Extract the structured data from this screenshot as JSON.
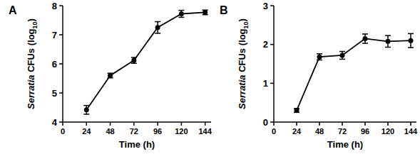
{
  "chart_data": [
    {
      "type": "line",
      "title": "A",
      "x_label": "Time (h)",
      "y_label": "Serratia CFUs (log10)",
      "x": [
        24,
        48,
        72,
        96,
        120,
        144
      ],
      "series": [
        {
          "name": "Serratia",
          "color": "#000000",
          "marker": "circle",
          "line_style": "solid",
          "values": [
            4.42,
            5.6,
            6.12,
            7.25,
            7.72,
            7.77
          ],
          "errors": [
            0.15,
            0.08,
            0.1,
            0.2,
            0.12,
            0.08
          ]
        }
      ],
      "xlim": [
        0,
        150
      ],
      "xticks": [
        0,
        24,
        48,
        72,
        96,
        120,
        144
      ],
      "ylim": [
        4,
        8
      ],
      "yticks": [
        4,
        5,
        6,
        7,
        8
      ],
      "grid": false
    },
    {
      "type": "line",
      "title": "B",
      "x_label": "Time (h)",
      "y_label": "Serratia CFUs (log10)",
      "x": [
        24,
        48,
        72,
        96,
        120,
        144
      ],
      "series": [
        {
          "name": "Serratia",
          "color": "#000000",
          "marker": "circle",
          "line_style": "solid",
          "values": [
            0.3,
            1.68,
            1.72,
            2.15,
            2.08,
            2.1
          ],
          "errors": [
            0.05,
            0.08,
            0.1,
            0.12,
            0.15,
            0.18
          ]
        }
      ],
      "xlim": [
        0,
        150
      ],
      "xticks": [
        0,
        24,
        48,
        72,
        96,
        120,
        144
      ],
      "ylim": [
        0,
        3
      ],
      "yticks": [
        0,
        1,
        2,
        3
      ],
      "grid": false
    }
  ]
}
